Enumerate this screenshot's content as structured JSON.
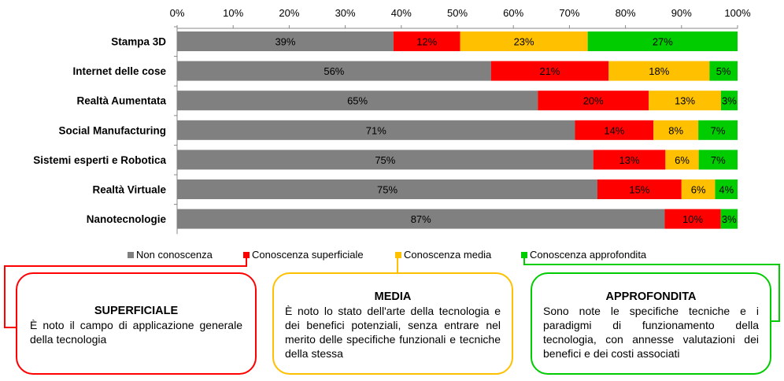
{
  "chart_data": {
    "type": "bar",
    "orientation": "horizontal",
    "stacked": true,
    "categories": [
      "Stampa 3D",
      "Internet delle cose",
      "Realtà Aumentata",
      "Social Manufacturing",
      "Sistemi esperti e Robotica",
      "Realtà Virtuale",
      "Nanotecnologie"
    ],
    "series": [
      {
        "name": "Non conoscenza",
        "color": "#808080",
        "values": [
          39,
          56,
          65,
          71,
          75,
          75,
          87
        ]
      },
      {
        "name": "Conoscenza superficiale",
        "color": "#ff0000",
        "values": [
          12,
          21,
          20,
          14,
          13,
          15,
          10
        ]
      },
      {
        "name": "Conoscenza media",
        "color": "#ffc000",
        "values": [
          23,
          18,
          13,
          8,
          6,
          6,
          0
        ]
      },
      {
        "name": "Conoscenza approfondita",
        "color": "#00cc00",
        "values": [
          27,
          5,
          3,
          7,
          7,
          4,
          3
        ]
      }
    ],
    "xticks": [
      "0%",
      "10%",
      "20%",
      "30%",
      "40%",
      "50%",
      "60%",
      "70%",
      "80%",
      "90%",
      "100%"
    ],
    "xlim": [
      0,
      100
    ],
    "grid": false,
    "legend": "bottom"
  },
  "boxes": [
    {
      "title": "SUPERFICIALE",
      "body": "È noto il campo di applicazione generale della tecnologia",
      "color": "#ff0000"
    },
    {
      "title": "MEDIA",
      "body": "È noto lo stato dell'arte della tecnologia e dei benefici potenziali, senza entrare nel merito delle specifiche funzionali e tecniche della stessa",
      "color": "#ffc000"
    },
    {
      "title": "APPROFONDITA",
      "body": "Sono note le specifiche tecniche e i paradigmi di funzionamento della tecnologia, con annesse valutazioni dei benefici e dei costi associati",
      "color": "#00cc00"
    }
  ]
}
